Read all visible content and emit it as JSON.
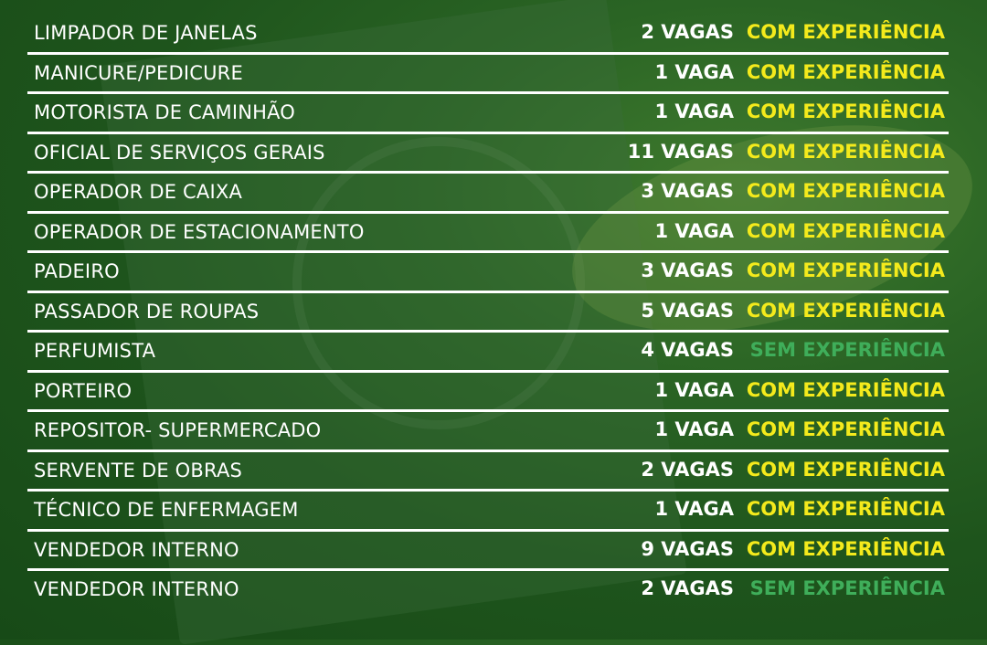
{
  "colors": {
    "com_experiencia": "#f4ea1c",
    "sem_experiencia": "#3fae5a",
    "background": "#1e541c"
  },
  "jobs": [
    {
      "title": "LIMPADOR DE JANELAS",
      "vacancies": "2 VAGAS",
      "experience": "COM EXPERIÊNCIA",
      "type": "com"
    },
    {
      "title": "MANICURE/PEDICURE",
      "vacancies": "1 VAGA",
      "experience": "COM EXPERIÊNCIA",
      "type": "com"
    },
    {
      "title": "MOTORISTA DE CAMINHÃO",
      "vacancies": "1 VAGA",
      "experience": "COM EXPERIÊNCIA",
      "type": "com"
    },
    {
      "title": "OFICIAL DE SERVIÇOS GERAIS",
      "vacancies": "11 VAGAS",
      "experience": "COM EXPERIÊNCIA",
      "type": "com"
    },
    {
      "title": "OPERADOR DE CAIXA",
      "vacancies": "3 VAGAS",
      "experience": "COM EXPERIÊNCIA",
      "type": "com"
    },
    {
      "title": "OPERADOR DE ESTACIONAMENTO",
      "vacancies": "1 VAGA",
      "experience": "COM EXPERIÊNCIA",
      "type": "com"
    },
    {
      "title": "PADEIRO",
      "vacancies": "3 VAGAS",
      "experience": "COM EXPERIÊNCIA",
      "type": "com"
    },
    {
      "title": "PASSADOR DE ROUPAS",
      "vacancies": "5 VAGAS",
      "experience": "COM EXPERIÊNCIA",
      "type": "com"
    },
    {
      "title": "PERFUMISTA",
      "vacancies": "4 VAGAS",
      "experience": "SEM EXPERIÊNCIA",
      "type": "sem"
    },
    {
      "title": "PORTEIRO",
      "vacancies": "1 VAGA",
      "experience": "COM EXPERIÊNCIA",
      "type": "com"
    },
    {
      "title": "REPOSITOR- SUPERMERCADO",
      "vacancies": "1 VAGA",
      "experience": "COM EXPERIÊNCIA",
      "type": "com"
    },
    {
      "title": "SERVENTE DE OBRAS",
      "vacancies": "2 VAGAS",
      "experience": "COM EXPERIÊNCIA",
      "type": "com"
    },
    {
      "title": "TÉCNICO DE ENFERMAGEM",
      "vacancies": "1 VAGA",
      "experience": "COM EXPERIÊNCIA",
      "type": "com"
    },
    {
      "title": "VENDEDOR INTERNO",
      "vacancies": "9 VAGAS",
      "experience": "COM EXPERIÊNCIA",
      "type": "com"
    },
    {
      "title": "VENDEDOR INTERNO",
      "vacancies": "2 VAGAS",
      "experience": "SEM EXPERIÊNCIA",
      "type": "sem"
    }
  ]
}
